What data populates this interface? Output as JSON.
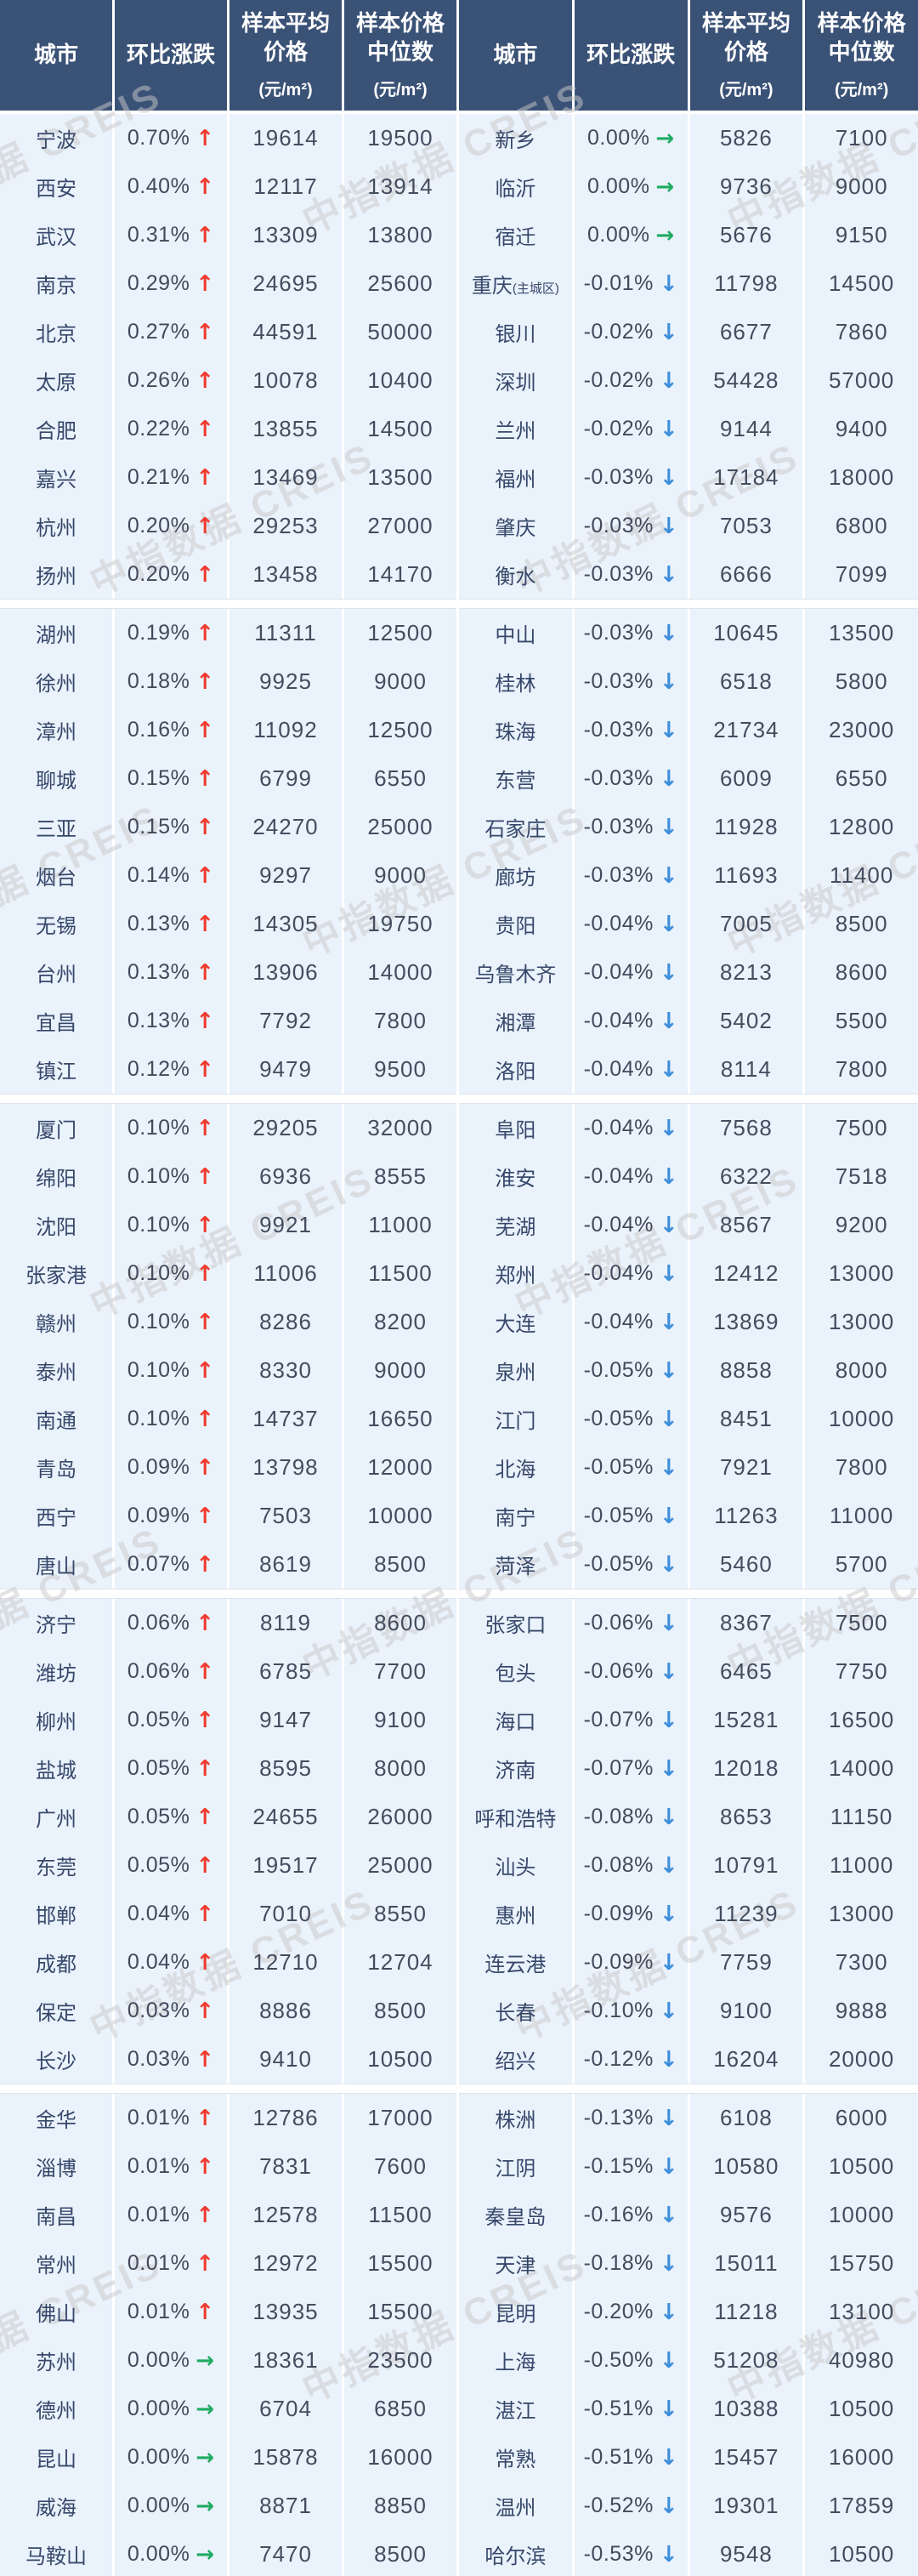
{
  "watermark": {
    "text": "中指数据 CREIS"
  },
  "header": {
    "city": "城市",
    "change": "环比涨跌",
    "avg_line1": "样本平均",
    "avg_line2": "价格",
    "med_line1": "样本价格",
    "med_line2": "中位数",
    "unit": "(元/m²)"
  },
  "colors": {
    "header_bg": "#3b5277",
    "row_bg": "#eaf2fb",
    "up": "#f13a2e",
    "down": "#3d8edb",
    "flat": "#1fab61"
  },
  "chart_data": {
    "type": "table",
    "columns": [
      "城市",
      "环比涨跌",
      "样本平均价格(元/m²)",
      "样本价格中位数(元/m²)"
    ],
    "row_format": [
      "city",
      "change",
      "dir",
      "avg_price",
      "median_price",
      "city_suffix(optional)"
    ],
    "tables": [
      {
        "groups": [
          [
            [
              "宁波",
              "0.70%",
              "up",
              "19614",
              "19500"
            ],
            [
              "西安",
              "0.40%",
              "up",
              "12117",
              "13914"
            ],
            [
              "武汉",
              "0.31%",
              "up",
              "13309",
              "13800"
            ],
            [
              "南京",
              "0.29%",
              "up",
              "24695",
              "25600"
            ],
            [
              "北京",
              "0.27%",
              "up",
              "44591",
              "50000"
            ],
            [
              "太原",
              "0.26%",
              "up",
              "10078",
              "10400"
            ],
            [
              "合肥",
              "0.22%",
              "up",
              "13855",
              "14500"
            ],
            [
              "嘉兴",
              "0.21%",
              "up",
              "13469",
              "13500"
            ],
            [
              "杭州",
              "0.20%",
              "up",
              "29253",
              "27000"
            ],
            [
              "扬州",
              "0.20%",
              "up",
              "13458",
              "14170"
            ]
          ],
          [
            [
              "湖州",
              "0.19%",
              "up",
              "11311",
              "12500"
            ],
            [
              "徐州",
              "0.18%",
              "up",
              "9925",
              "9000"
            ],
            [
              "漳州",
              "0.16%",
              "up",
              "11092",
              "12500"
            ],
            [
              "聊城",
              "0.15%",
              "up",
              "6799",
              "6550"
            ],
            [
              "三亚",
              "0.15%",
              "up",
              "24270",
              "25000"
            ],
            [
              "烟台",
              "0.14%",
              "up",
              "9297",
              "9000"
            ],
            [
              "无锡",
              "0.13%",
              "up",
              "14305",
              "19750"
            ],
            [
              "台州",
              "0.13%",
              "up",
              "13906",
              "14000"
            ],
            [
              "宜昌",
              "0.13%",
              "up",
              "7792",
              "7800"
            ],
            [
              "镇江",
              "0.12%",
              "up",
              "9479",
              "9500"
            ]
          ],
          [
            [
              "厦门",
              "0.10%",
              "up",
              "29205",
              "32000"
            ],
            [
              "绵阳",
              "0.10%",
              "up",
              "6936",
              "8555"
            ],
            [
              "沈阳",
              "0.10%",
              "up",
              "9921",
              "11000"
            ],
            [
              "张家港",
              "0.10%",
              "up",
              "11006",
              "11500"
            ],
            [
              "赣州",
              "0.10%",
              "up",
              "8286",
              "8200"
            ],
            [
              "泰州",
              "0.10%",
              "up",
              "8330",
              "9000"
            ],
            [
              "南通",
              "0.10%",
              "up",
              "14737",
              "16650"
            ],
            [
              "青岛",
              "0.09%",
              "up",
              "13798",
              "12000"
            ],
            [
              "西宁",
              "0.09%",
              "up",
              "7503",
              "10000"
            ],
            [
              "唐山",
              "0.07%",
              "up",
              "8619",
              "8500"
            ]
          ],
          [
            [
              "济宁",
              "0.06%",
              "up",
              "8119",
              "8600"
            ],
            [
              "潍坊",
              "0.06%",
              "up",
              "6785",
              "7700"
            ],
            [
              "柳州",
              "0.05%",
              "up",
              "9147",
              "9100"
            ],
            [
              "盐城",
              "0.05%",
              "up",
              "8595",
              "8000"
            ],
            [
              "广州",
              "0.05%",
              "up",
              "24655",
              "26000"
            ],
            [
              "东莞",
              "0.05%",
              "up",
              "19517",
              "25000"
            ],
            [
              "邯郸",
              "0.04%",
              "up",
              "7010",
              "8550"
            ],
            [
              "成都",
              "0.04%",
              "up",
              "12710",
              "12704"
            ],
            [
              "保定",
              "0.03%",
              "up",
              "8886",
              "8500"
            ],
            [
              "长沙",
              "0.03%",
              "up",
              "9410",
              "10500"
            ]
          ],
          [
            [
              "金华",
              "0.01%",
              "up",
              "12786",
              "17000"
            ],
            [
              "淄博",
              "0.01%",
              "up",
              "7831",
              "7600"
            ],
            [
              "南昌",
              "0.01%",
              "up",
              "12578",
              "11500"
            ],
            [
              "常州",
              "0.01%",
              "up",
              "12972",
              "15500"
            ],
            [
              "佛山",
              "0.01%",
              "up",
              "13935",
              "15500"
            ],
            [
              "苏州",
              "0.00%",
              "flat",
              "18361",
              "23500"
            ],
            [
              "德州",
              "0.00%",
              "flat",
              "6704",
              "6850"
            ],
            [
              "昆山",
              "0.00%",
              "flat",
              "15878",
              "16000"
            ],
            [
              "威海",
              "0.00%",
              "flat",
              "8871",
              "8850"
            ],
            [
              "马鞍山",
              "0.00%",
              "flat",
              "7470",
              "8500"
            ]
          ]
        ]
      },
      {
        "groups": [
          [
            [
              "新乡",
              "0.00%",
              "flat",
              "5826",
              "7100"
            ],
            [
              "临沂",
              "0.00%",
              "flat",
              "9736",
              "9000"
            ],
            [
              "宿迁",
              "0.00%",
              "flat",
              "5676",
              "9150"
            ],
            [
              "重庆",
              "-0.01%",
              "down",
              "11798",
              "14500",
              "(主城区)"
            ],
            [
              "银川",
              "-0.02%",
              "down",
              "6677",
              "7860"
            ],
            [
              "深圳",
              "-0.02%",
              "down",
              "54428",
              "57000"
            ],
            [
              "兰州",
              "-0.02%",
              "down",
              "9144",
              "9400"
            ],
            [
              "福州",
              "-0.03%",
              "down",
              "17184",
              "18000"
            ],
            [
              "肇庆",
              "-0.03%",
              "down",
              "7053",
              "6800"
            ],
            [
              "衡水",
              "-0.03%",
              "down",
              "6666",
              "7099"
            ]
          ],
          [
            [
              "中山",
              "-0.03%",
              "down",
              "10645",
              "13500"
            ],
            [
              "桂林",
              "-0.03%",
              "down",
              "6518",
              "5800"
            ],
            [
              "珠海",
              "-0.03%",
              "down",
              "21734",
              "23000"
            ],
            [
              "东营",
              "-0.03%",
              "down",
              "6009",
              "6550"
            ],
            [
              "石家庄",
              "-0.03%",
              "down",
              "11928",
              "12800"
            ],
            [
              "廊坊",
              "-0.03%",
              "down",
              "11693",
              "11400"
            ],
            [
              "贵阳",
              "-0.04%",
              "down",
              "7005",
              "8500"
            ],
            [
              "乌鲁木齐",
              "-0.04%",
              "down",
              "8213",
              "8600"
            ],
            [
              "湘潭",
              "-0.04%",
              "down",
              "5402",
              "5500"
            ],
            [
              "洛阳",
              "-0.04%",
              "down",
              "8114",
              "7800"
            ]
          ],
          [
            [
              "阜阳",
              "-0.04%",
              "down",
              "7568",
              "7500"
            ],
            [
              "淮安",
              "-0.04%",
              "down",
              "6322",
              "7518"
            ],
            [
              "芜湖",
              "-0.04%",
              "down",
              "8567",
              "9200"
            ],
            [
              "郑州",
              "-0.04%",
              "down",
              "12412",
              "13000"
            ],
            [
              "大连",
              "-0.04%",
              "down",
              "13869",
              "13000"
            ],
            [
              "泉州",
              "-0.05%",
              "down",
              "8858",
              "8000"
            ],
            [
              "江门",
              "-0.05%",
              "down",
              "8451",
              "10000"
            ],
            [
              "北海",
              "-0.05%",
              "down",
              "7921",
              "7800"
            ],
            [
              "南宁",
              "-0.05%",
              "down",
              "11263",
              "11000"
            ],
            [
              "菏泽",
              "-0.05%",
              "down",
              "5460",
              "5700"
            ]
          ],
          [
            [
              "张家口",
              "-0.06%",
              "down",
              "8367",
              "7500"
            ],
            [
              "包头",
              "-0.06%",
              "down",
              "6465",
              "7750"
            ],
            [
              "海口",
              "-0.07%",
              "down",
              "15281",
              "16500"
            ],
            [
              "济南",
              "-0.07%",
              "down",
              "12018",
              "14000"
            ],
            [
              "呼和浩特",
              "-0.08%",
              "down",
              "8653",
              "11150"
            ],
            [
              "汕头",
              "-0.08%",
              "down",
              "10791",
              "11000"
            ],
            [
              "惠州",
              "-0.09%",
              "down",
              "11239",
              "13000"
            ],
            [
              "连云港",
              "-0.09%",
              "down",
              "7759",
              "7300"
            ],
            [
              "长春",
              "-0.10%",
              "down",
              "9100",
              "9888"
            ],
            [
              "绍兴",
              "-0.12%",
              "down",
              "16204",
              "20000"
            ]
          ],
          [
            [
              "株洲",
              "-0.13%",
              "down",
              "6108",
              "6000"
            ],
            [
              "江阴",
              "-0.15%",
              "down",
              "10580",
              "10500"
            ],
            [
              "秦皇岛",
              "-0.16%",
              "down",
              "9576",
              "10000"
            ],
            [
              "天津",
              "-0.18%",
              "down",
              "15011",
              "15750"
            ],
            [
              "昆明",
              "-0.20%",
              "down",
              "11218",
              "13100"
            ],
            [
              "上海",
              "-0.50%",
              "down",
              "51208",
              "40980"
            ],
            [
              "湛江",
              "-0.51%",
              "down",
              "10388",
              "10500"
            ],
            [
              "常熟",
              "-0.51%",
              "down",
              "15457",
              "16000"
            ],
            [
              "温州",
              "-0.52%",
              "down",
              "19301",
              "17859"
            ],
            [
              "哈尔滨",
              "-0.53%",
              "down",
              "9548",
              "10500"
            ]
          ]
        ]
      }
    ]
  }
}
